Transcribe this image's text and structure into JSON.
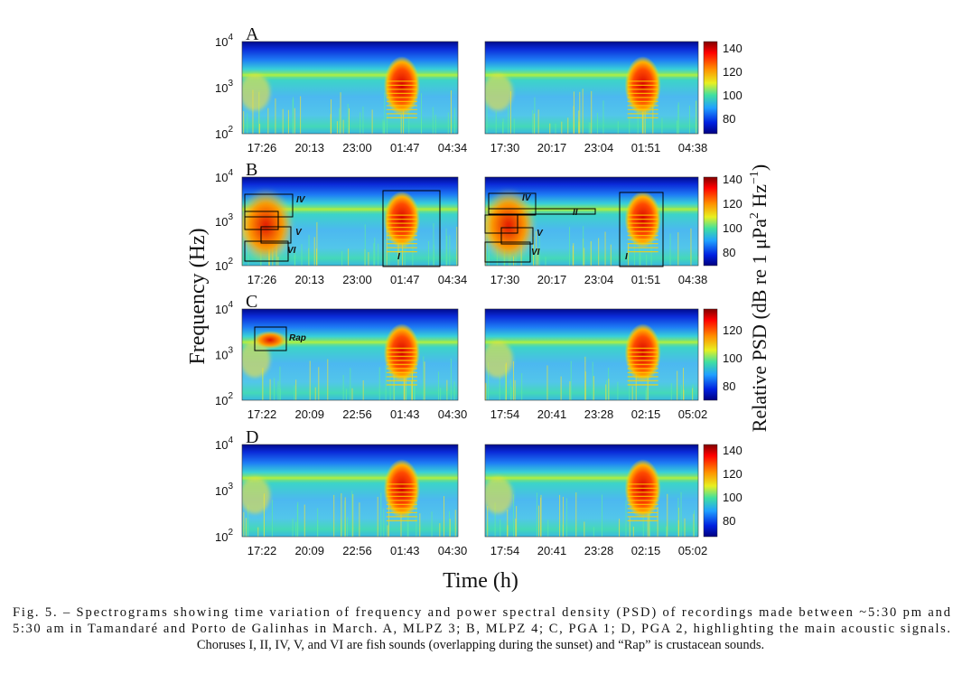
{
  "figure": {
    "y_label": "Frequency (Hz)",
    "x_label": "Time (h)",
    "colorbar_label": {
      "main": "Relative PSD (dB re 1 μPa",
      "sup1": "2",
      "mid": " Hz",
      "sup2": "−1",
      "end": ")"
    },
    "yticks": [
      {
        "base": "10",
        "exp": "4"
      },
      {
        "base": "10",
        "exp": "3"
      },
      {
        "base": "10",
        "exp": "2"
      }
    ],
    "rows": [
      {
        "letter": "A",
        "left": {
          "xticks": [
            "17:26",
            "20:13",
            "23:00",
            "01:47",
            "04:34"
          ]
        },
        "right": {
          "xticks": [
            "17:30",
            "20:17",
            "23:04",
            "01:51",
            "04:38"
          ]
        },
        "colorbar": [
          140,
          120,
          100,
          80
        ]
      },
      {
        "letter": "B",
        "left": {
          "xticks": [
            "17:26",
            "20:13",
            "23:00",
            "01:47",
            "04:34"
          ],
          "labels": [
            "IV",
            "V",
            "VI",
            "I"
          ]
        },
        "right": {
          "xticks": [
            "17:30",
            "20:17",
            "23:04",
            "01:51",
            "04:38"
          ],
          "labels": [
            "IV",
            "II",
            "V",
            "VI",
            "I"
          ]
        },
        "colorbar": [
          140,
          120,
          100,
          80
        ]
      },
      {
        "letter": "C",
        "left": {
          "xticks": [
            "17:22",
            "20:09",
            "22:56",
            "01:43",
            "04:30"
          ],
          "labels": [
            "Rap"
          ]
        },
        "right": {
          "xticks": [
            "17:54",
            "20:41",
            "23:28",
            "02:15",
            "05:02"
          ]
        },
        "colorbar": [
          120,
          100,
          80
        ]
      },
      {
        "letter": "D",
        "left": {
          "xticks": [
            "17:22",
            "20:09",
            "22:56",
            "01:43",
            "04:30"
          ]
        },
        "right": {
          "xticks": [
            "17:54",
            "20:41",
            "23:28",
            "02:15",
            "05:02"
          ]
        },
        "colorbar": [
          140,
          120,
          100,
          80
        ]
      }
    ]
  },
  "caption": [
    "Fig. 5. – Spectrograms showing time variation of frequency and power spectral density (PSD) of recordings made between ~5:30 pm and",
    "5:30 am in Tamandaré and Porto de Galinhas in March. A, MLPZ 3; B, MLPZ 4; C, PGA 1; D, PGA 2, highlighting the main acoustic signals.",
    "Choruses I, II, IV, V, and VI are fish sounds (overlapping during the sunset) and “Rap” is crustacean sounds."
  ]
}
